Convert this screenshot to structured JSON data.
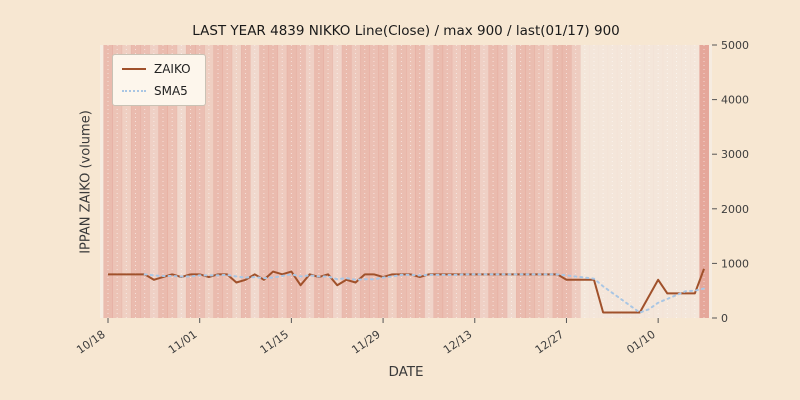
{
  "chart_data": {
    "type": "line",
    "title": "LAST YEAR 4839 NIKKO Line(Close) / max 900 / last(01/17) 900",
    "xlabel": "DATE",
    "ylabel": "IPPAN ZAIKO (volume)",
    "ylim": [
      0,
      5000
    ],
    "yticks": [
      0,
      1000,
      2000,
      3000,
      4000,
      5000
    ],
    "xticks": [
      {
        "index": 0,
        "label": "10/18"
      },
      {
        "index": 10,
        "label": "11/01"
      },
      {
        "index": 20,
        "label": "11/15"
      },
      {
        "index": 30,
        "label": "11/29"
      },
      {
        "index": 40,
        "label": "12/13"
      },
      {
        "index": 50,
        "label": "12/27"
      },
      {
        "index": 60,
        "label": "01/10"
      }
    ],
    "dates": [
      "10/18",
      "10/19",
      "10/20",
      "10/23",
      "10/24",
      "10/25",
      "10/26",
      "10/27",
      "10/30",
      "10/31",
      "11/01",
      "11/02",
      "11/03",
      "11/06",
      "11/07",
      "11/08",
      "11/09",
      "11/10",
      "11/13",
      "11/14",
      "11/15",
      "11/16",
      "11/17",
      "11/20",
      "11/21",
      "11/22",
      "11/23",
      "11/24",
      "11/27",
      "11/28",
      "11/29",
      "11/30",
      "12/01",
      "12/04",
      "12/05",
      "12/06",
      "12/07",
      "12/08",
      "12/11",
      "12/12",
      "12/13",
      "12/14",
      "12/15",
      "12/18",
      "12/19",
      "12/20",
      "12/21",
      "12/22",
      "12/25",
      "12/26",
      "12/27",
      "12/28",
      "12/29",
      "01/01",
      "01/02",
      "01/03",
      "01/04",
      "01/05",
      "01/08",
      "01/09",
      "01/10",
      "01/11",
      "01/12",
      "01/15",
      "01/16",
      "01/17"
    ],
    "series": [
      {
        "name": "ZAIKO",
        "color": "#a0512b",
        "style": "solid",
        "values": [
          800,
          800,
          800,
          800,
          800,
          700,
          750,
          800,
          750,
          800,
          800,
          750,
          800,
          800,
          650,
          700,
          800,
          700,
          850,
          800,
          850,
          600,
          800,
          750,
          800,
          600,
          700,
          650,
          800,
          800,
          750,
          800,
          800,
          800,
          750,
          800,
          800,
          800,
          800,
          800,
          800,
          800,
          800,
          800,
          800,
          800,
          800,
          800,
          800,
          800,
          700,
          700,
          700,
          700,
          100,
          100,
          100,
          100,
          100,
          400,
          700,
          450,
          450,
          450,
          450,
          900
        ]
      },
      {
        "name": "SMA5",
        "color": "#a9c6e4",
        "style": "dotted",
        "derived": "5-day moving average of ZAIKO"
      }
    ],
    "sma_window": 5,
    "background_bands": [
      0.5,
      0.42,
      0.3,
      0.5,
      0.46,
      0.28,
      0.5,
      0.44,
      0.2,
      0.5,
      0.46,
      0.3,
      0.5,
      0.44,
      0.26,
      0.5,
      0.2,
      0.48,
      0.5,
      0.34,
      0.5,
      0.46,
      0.28,
      0.5,
      0.42,
      0.24,
      0.5,
      0.36,
      0.5,
      0.46,
      0.5,
      0.3,
      0.48,
      0.44,
      0.5,
      0.24,
      0.5,
      0.46,
      0.34,
      0.5,
      0.48,
      0.28,
      0.5,
      0.46,
      0.2,
      0.5,
      0.48,
      0.42,
      0.3,
      0.5,
      0.5,
      0.32,
      0.06,
      0.06,
      0.06,
      0.06,
      0.06,
      0.06,
      0.06,
      0.06,
      0.06,
      0.06,
      0.06,
      0.06,
      0.06,
      0.7
    ],
    "colors": {
      "figure_bg": "#f7e7d2",
      "plot_bg": "#f6ece1",
      "band": "#de8a7c",
      "grid": "#ffffff",
      "tick_text": "#3d3d3d",
      "tick_mark": "#555555",
      "title_text": "#1a1a1a"
    }
  }
}
